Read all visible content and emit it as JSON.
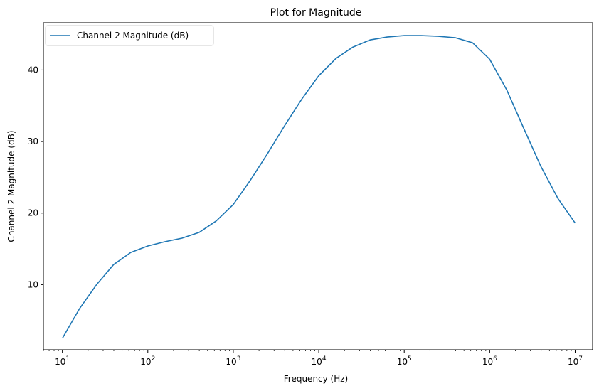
{
  "chart_data": {
    "type": "line",
    "title": "Plot for Magnitude",
    "xlabel": "Frequency (Hz)",
    "ylabel": "Channel 2 Magnitude (dB)",
    "xscale": "log",
    "xlim": [
      6.0,
      16000000
    ],
    "ylim": [
      0.9,
      46.6
    ],
    "grid": false,
    "legend_position": "upper-left",
    "x_ticks": [
      {
        "value": 10,
        "base": "10",
        "exp": "1"
      },
      {
        "value": 100,
        "base": "10",
        "exp": "2"
      },
      {
        "value": 1000,
        "base": "10",
        "exp": "3"
      },
      {
        "value": 10000,
        "base": "10",
        "exp": "4"
      },
      {
        "value": 100000,
        "base": "10",
        "exp": "5"
      },
      {
        "value": 1000000,
        "base": "10",
        "exp": "6"
      },
      {
        "value": 10000000,
        "base": "10",
        "exp": "7"
      }
    ],
    "y_ticks": [
      {
        "value": 10,
        "label": "10"
      },
      {
        "value": 20,
        "label": "20"
      },
      {
        "value": 30,
        "label": "30"
      },
      {
        "value": 40,
        "label": "40"
      }
    ],
    "series": [
      {
        "name": "Channel 2 Magnitude (dB)",
        "color": "#1f77b4",
        "x": [
          10,
          15.8,
          25.1,
          39.8,
          63.1,
          100,
          158,
          251,
          398,
          631,
          1000,
          1585,
          2512,
          3981,
          6310,
          10000,
          15850,
          25120,
          39810,
          63100,
          100000,
          158500,
          251200,
          398100,
          631000,
          1000000,
          1585000,
          2512000,
          3981000,
          6310000,
          10000000
        ],
        "y": [
          2.5,
          6.6,
          10.0,
          12.8,
          14.5,
          15.4,
          16.0,
          16.5,
          17.3,
          18.9,
          21.2,
          24.6,
          28.3,
          32.2,
          35.9,
          39.2,
          41.6,
          43.2,
          44.2,
          44.6,
          44.8,
          44.8,
          44.7,
          44.5,
          43.8,
          41.5,
          37.2,
          31.8,
          26.5,
          22.0,
          18.6
        ]
      }
    ]
  }
}
